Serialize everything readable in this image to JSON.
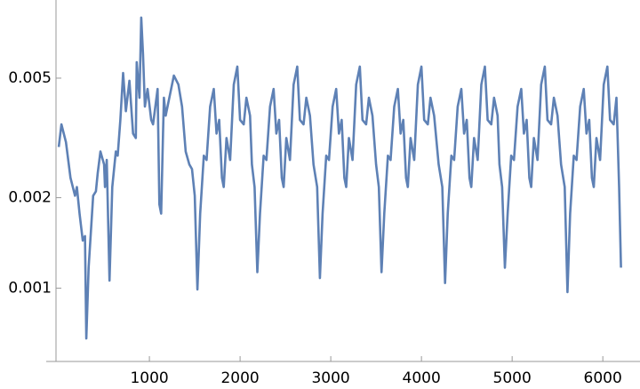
{
  "chart_data": {
    "type": "line",
    "log_y": true,
    "color": "#5e81b5",
    "xlim": [
      -30,
      6410
    ],
    "ylim": [
      0.00057,
      0.0091
    ],
    "xticks": [
      1000,
      2000,
      3000,
      4000,
      5000,
      6000
    ],
    "yticks": [
      0.001,
      0.002,
      0.005
    ],
    "x": [
      0,
      30,
      80,
      130,
      180,
      200,
      230,
      265,
      290,
      304,
      330,
      380,
      410,
      430,
      460,
      500,
      510,
      530,
      560,
      590,
      630,
      650,
      680,
      710,
      740,
      780,
      820,
      850,
      860,
      890,
      910,
      930,
      950,
      980,
      1020,
      1040,
      1090,
      1110,
      1130,
      1150,
      1160,
      1180,
      1270,
      1320,
      1360,
      1400,
      1440,
      1470,
      1500,
      1530,
      1560,
      1600,
      1630,
      1670,
      1710,
      1740,
      1770,
      1800,
      1820,
      1850,
      1890,
      1930,
      1970,
      2000,
      2040,
      2070,
      2110,
      2130,
      2160,
      2190,
      2220,
      2260,
      2290,
      2330,
      2370,
      2400,
      2430,
      2460,
      2480,
      2510,
      2550,
      2590,
      2630,
      2660,
      2700,
      2730,
      2770,
      2810,
      2850,
      2880,
      2910,
      2950,
      2980,
      3020,
      3060,
      3090,
      3120,
      3150,
      3170,
      3200,
      3240,
      3280,
      3320,
      3350,
      3390,
      3420,
      3460,
      3500,
      3530,
      3560,
      3590,
      3630,
      3660,
      3700,
      3740,
      3770,
      3800,
      3830,
      3850,
      3880,
      3920,
      3960,
      4000,
      4030,
      4070,
      4100,
      4140,
      4190,
      4230,
      4260,
      4290,
      4330,
      4360,
      4400,
      4440,
      4470,
      4500,
      4530,
      4550,
      4580,
      4620,
      4660,
      4700,
      4730,
      4770,
      4800,
      4840,
      4860,
      4890,
      4920,
      4950,
      4990,
      5020,
      5060,
      5100,
      5130,
      5160,
      5190,
      5210,
      5240,
      5280,
      5320,
      5360,
      5390,
      5430,
      5460,
      5500,
      5540,
      5580,
      5610,
      5640,
      5680,
      5710,
      5750,
      5790,
      5820,
      5850,
      5880,
      5900,
      5930,
      5970,
      6010,
      6050,
      6080,
      6120,
      6150,
      6180,
      6200
    ],
    "y": [
      0.00295,
      0.00351,
      0.00306,
      0.00233,
      0.00203,
      0.00217,
      0.00177,
      0.00144,
      0.00149,
      0.00068,
      0.00117,
      0.00203,
      0.0021,
      0.00241,
      0.00285,
      0.00258,
      0.00217,
      0.00267,
      0.00106,
      0.00217,
      0.00285,
      0.00276,
      0.00363,
      0.0052,
      0.00388,
      0.0049,
      0.00327,
      0.00316,
      0.00565,
      0.0043,
      0.00795,
      0.006,
      0.00402,
      0.0046,
      0.00363,
      0.00351,
      0.0046,
      0.0019,
      0.00177,
      0.00327,
      0.0043,
      0.00375,
      0.0051,
      0.00476,
      0.00402,
      0.00285,
      0.00258,
      0.00249,
      0.00203,
      0.00099,
      0.00177,
      0.00276,
      0.00267,
      0.00402,
      0.0046,
      0.00327,
      0.00363,
      0.00233,
      0.00217,
      0.00316,
      0.00267,
      0.00476,
      0.00546,
      0.00363,
      0.00351,
      0.0043,
      0.00375,
      0.00258,
      0.00217,
      0.00113,
      0.00177,
      0.00276,
      0.00267,
      0.00402,
      0.0046,
      0.00327,
      0.00363,
      0.00233,
      0.00217,
      0.00316,
      0.00267,
      0.00476,
      0.00546,
      0.00363,
      0.00351,
      0.0043,
      0.00375,
      0.00258,
      0.00217,
      0.00108,
      0.00177,
      0.00276,
      0.00267,
      0.00402,
      0.0046,
      0.00327,
      0.00363,
      0.00233,
      0.00217,
      0.00316,
      0.00267,
      0.00476,
      0.00546,
      0.00363,
      0.00351,
      0.0043,
      0.00375,
      0.00258,
      0.00217,
      0.00113,
      0.00177,
      0.00276,
      0.00267,
      0.00402,
      0.0046,
      0.00327,
      0.00363,
      0.00233,
      0.00217,
      0.00316,
      0.00267,
      0.00476,
      0.00546,
      0.00363,
      0.00351,
      0.0043,
      0.00375,
      0.00258,
      0.00217,
      0.00104,
      0.00177,
      0.00276,
      0.00267,
      0.00402,
      0.0046,
      0.00327,
      0.00363,
      0.00233,
      0.00217,
      0.00316,
      0.00267,
      0.00476,
      0.00546,
      0.00363,
      0.00351,
      0.0043,
      0.00375,
      0.00258,
      0.00217,
      0.00117,
      0.00177,
      0.00276,
      0.00267,
      0.00402,
      0.0046,
      0.00327,
      0.00363,
      0.00233,
      0.00217,
      0.00316,
      0.00267,
      0.00476,
      0.00546,
      0.00363,
      0.00351,
      0.0043,
      0.00375,
      0.00258,
      0.00217,
      0.00097,
      0.00177,
      0.00276,
      0.00267,
      0.00402,
      0.0046,
      0.00327,
      0.00363,
      0.00233,
      0.00217,
      0.00316,
      0.00267,
      0.00476,
      0.00546,
      0.00363,
      0.00351,
      0.0043,
      0.00217,
      0.00117
    ]
  }
}
